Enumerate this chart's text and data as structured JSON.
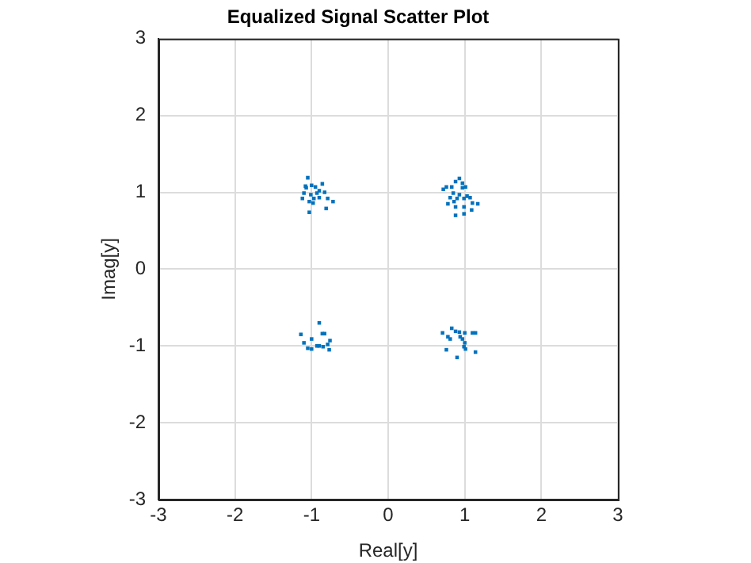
{
  "chart_data": {
    "type": "scatter",
    "title": "Equalized Signal Scatter Plot",
    "xlabel": "Real[y]",
    "ylabel": "Imag[y]",
    "xlim": [
      -3,
      3
    ],
    "xticks": [
      -3,
      -2,
      -1,
      0,
      1,
      2,
      3
    ],
    "ylim": [
      -3,
      3
    ],
    "yticks": [
      -3,
      -2,
      -1,
      0,
      1,
      2,
      3
    ],
    "grid": true,
    "marker": "square",
    "series": [
      {
        "color": "#0072bd",
        "x": [
          -1.05,
          -1.08,
          -1.0,
          -0.95,
          -1.1,
          -1.01,
          -0.93,
          -0.86,
          -0.9,
          -0.83,
          -1.12,
          -1.03,
          -0.97,
          -0.79,
          -0.72,
          -1.03,
          -0.81,
          -0.98,
          -1.07,
          -0.9,
          0.93,
          0.88,
          0.83,
          0.76,
          0.72,
          0.97,
          1.01,
          0.85,
          0.93,
          1.03,
          0.81,
          0.9,
          0.99,
          1.07,
          0.78,
          0.88,
          0.99,
          1.1,
          1.17,
          0.88,
          0.99,
          1.09,
          0.97,
          0.86,
          -0.9,
          -1.14,
          -0.86,
          -0.83,
          -1.0,
          -0.76,
          -1.1,
          -0.93,
          -0.79,
          -1.05,
          -1.0,
          -0.9,
          -0.77,
          -0.85,
          0.83,
          0.71,
          0.78,
          0.88,
          0.93,
          1.0,
          1.1,
          1.14,
          0.97,
          0.81,
          1.0,
          0.99,
          0.76,
          1.01,
          1.14,
          0.9,
          0.94
        ],
        "values": [
          1.19,
          1.08,
          1.09,
          1.07,
          0.99,
          0.97,
          0.99,
          1.11,
          1.02,
          1.0,
          0.92,
          0.88,
          0.92,
          0.92,
          0.88,
          0.74,
          0.79,
          0.86,
          1.06,
          0.93,
          1.18,
          1.14,
          1.07,
          1.07,
          1.04,
          1.06,
          1.07,
          0.99,
          0.97,
          0.95,
          0.93,
          0.92,
          0.92,
          0.93,
          0.85,
          0.81,
          0.81,
          0.86,
          0.85,
          0.7,
          0.72,
          0.77,
          1.12,
          0.88,
          -0.7,
          -0.85,
          -0.84,
          -0.84,
          -0.91,
          -0.93,
          -0.96,
          -1.0,
          -0.98,
          -1.03,
          -1.04,
          -1.0,
          -1.05,
          -1.01,
          -0.77,
          -0.83,
          -0.88,
          -0.81,
          -0.82,
          -0.83,
          -0.83,
          -0.83,
          -0.91,
          -0.91,
          -0.96,
          -1.01,
          -1.05,
          -1.04,
          -1.08,
          -1.15,
          -0.88
        ]
      }
    ]
  }
}
